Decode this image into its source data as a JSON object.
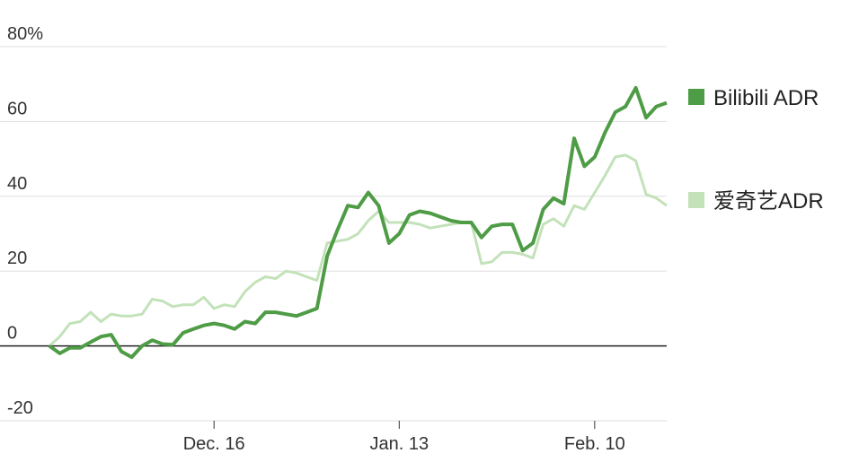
{
  "chart_data": {
    "type": "line",
    "categories": [
      null,
      null,
      null,
      null,
      null,
      null,
      null,
      null,
      null,
      null,
      null,
      null,
      null,
      null,
      null,
      null,
      "Dec. 16",
      null,
      null,
      null,
      null,
      null,
      null,
      null,
      null,
      null,
      null,
      null,
      null,
      null,
      null,
      null,
      null,
      null,
      "Jan. 13",
      null,
      null,
      null,
      null,
      null,
      null,
      null,
      null,
      null,
      null,
      null,
      null,
      null,
      null,
      null,
      null,
      null,
      null,
      "Feb. 10",
      null,
      null,
      null,
      null,
      null,
      null,
      null
    ],
    "series": [
      {
        "name": "爱奇艺ADR",
        "color": "#c3e2b9",
        "values": [
          0,
          2.5,
          6,
          6.5,
          9,
          6.5,
          8.5,
          8,
          8,
          8.5,
          12.5,
          12,
          10.5,
          11,
          11,
          13,
          10,
          11,
          10.5,
          14.5,
          17,
          18.5,
          18,
          20,
          19.5,
          18.5,
          17.5,
          27.5,
          28,
          28.5,
          30,
          33.5,
          36,
          33,
          33,
          33,
          32.5,
          31.5,
          32,
          32.5,
          33,
          33,
          22,
          22.5,
          25,
          25,
          24.5,
          23.5,
          32.5,
          34,
          32,
          37.5,
          36.5,
          41,
          45.5,
          50.5,
          51,
          49.5,
          40.5,
          39.5,
          37.5
        ]
      },
      {
        "name": "Bilibili ADR",
        "color": "#4e9c45",
        "values": [
          0,
          -2,
          -0.5,
          -0.5,
          1,
          2.5,
          3,
          -1.5,
          -3,
          0,
          1.5,
          0.5,
          0.3,
          3.5,
          4.5,
          5.5,
          6,
          5.5,
          4.5,
          6.5,
          6,
          9,
          9,
          8.5,
          8,
          9,
          10,
          24,
          31,
          37.5,
          37,
          41,
          37.5,
          27.5,
          30,
          35,
          36,
          35.5,
          34.5,
          33.5,
          33,
          33,
          29,
          32,
          32.5,
          32.5,
          25.5,
          27.5,
          36.5,
          39.5,
          38,
          55.5,
          48,
          50.5,
          57,
          62.5,
          64,
          69,
          61,
          64,
          65
        ]
      }
    ],
    "ylim": [
      -20,
      80
    ],
    "yticks": [
      -20,
      0,
      20,
      40,
      60,
      {
        "value": 80,
        "label": "80%"
      }
    ],
    "grid": true,
    "legend": "right"
  }
}
